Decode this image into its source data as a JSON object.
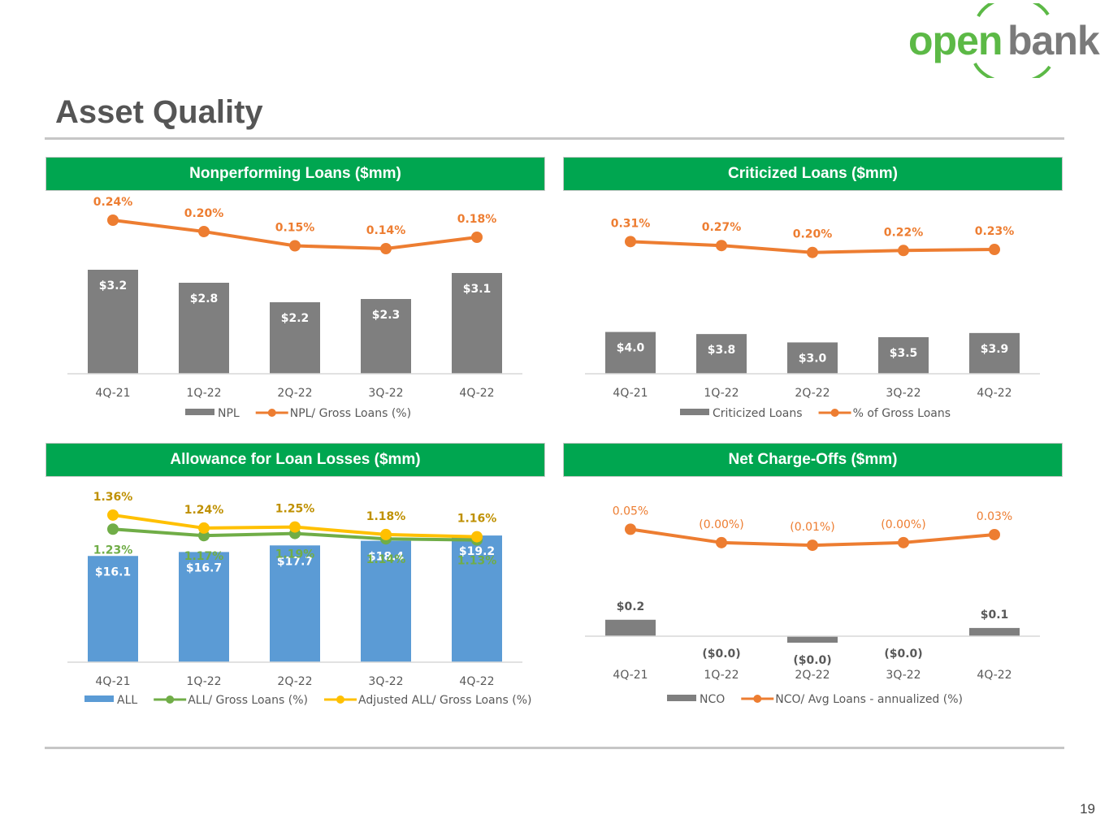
{
  "logo": {
    "part1": "open",
    "part2": "bank"
  },
  "page": {
    "title": "Asset Quality",
    "page_number": "19"
  },
  "colors": {
    "green_header": "#00a650",
    "bar_gray": "#7f7f7f",
    "bar_blue": "#5b9bd5",
    "line_orange": "#ed7d31",
    "line_green": "#70ad47",
    "line_yellow": "#ffc000"
  },
  "chart_data": [
    {
      "id": "npl",
      "type": "bar",
      "title": "Nonperforming Loans ($mm)",
      "categories": [
        "4Q-21",
        "1Q-22",
        "2Q-22",
        "3Q-22",
        "4Q-22"
      ],
      "bars": {
        "name": "NPL",
        "values": [
          3.2,
          2.8,
          2.2,
          2.3,
          3.1
        ],
        "labels": [
          "$3.2",
          "$2.8",
          "$2.2",
          "$2.3",
          "$3.1"
        ],
        "color": "#7f7f7f",
        "max": 4.5
      },
      "lines": [
        {
          "name": "NPL/ Gross Loans (%)",
          "values": [
            0.24,
            0.2,
            0.15,
            0.14,
            0.18
          ],
          "labels": [
            "0.24%",
            "0.20%",
            "0.15%",
            "0.14%",
            "0.18%"
          ],
          "color": "#ed7d31",
          "range": [
            -0.3,
            0.3
          ],
          "label_pos": "above"
        }
      ],
      "legend": [
        "NPL",
        "NPL/ Gross Loans (%)"
      ]
    },
    {
      "id": "criticized",
      "type": "bar",
      "title": "Criticized Loans ($mm)",
      "categories": [
        "4Q-21",
        "1Q-22",
        "2Q-22",
        "3Q-22",
        "4Q-22"
      ],
      "bars": {
        "name": "Criticized Loans",
        "values": [
          4.0,
          3.8,
          3.0,
          3.5,
          3.9
        ],
        "labels": [
          "$4.0",
          "$3.8",
          "$3.0",
          "$3.5",
          "$3.9"
        ],
        "color": "#7f7f7f",
        "max": 14.0
      },
      "lines": [
        {
          "name": "% of Gross Loans",
          "values": [
            0.31,
            0.27,
            0.2,
            0.22,
            0.23
          ],
          "labels": [
            "0.31%",
            "0.27%",
            "0.20%",
            "0.22%",
            "0.23%"
          ],
          "color": "#ed7d31",
          "range": [
            -1.03,
            0.7
          ],
          "label_pos": "above"
        }
      ],
      "legend": [
        "Criticized Loans",
        "% of Gross Loans"
      ]
    },
    {
      "id": "all",
      "type": "bar",
      "title": "Allowance for Loan Losses ($mm)",
      "categories": [
        "4Q-21",
        "1Q-22",
        "2Q-22",
        "3Q-22",
        "4Q-22"
      ],
      "bars": {
        "name": "ALL",
        "values": [
          16.1,
          16.7,
          17.7,
          18.4,
          19.2
        ],
        "labels": [
          "$16.1",
          "$16.7",
          "$17.7",
          "$18.4",
          "$19.2"
        ],
        "color": "#5b9bd5",
        "max": 25.0
      },
      "lines": [
        {
          "name": "ALL/ Gross Loans (%)",
          "values": [
            1.23,
            1.17,
            1.19,
            1.14,
            1.13
          ],
          "labels": [
            "1.23%",
            "1.17%",
            "1.19%",
            "1.14%",
            "1.13%"
          ],
          "color": "#70ad47",
          "range": [
            0.0,
            1.6
          ],
          "label_pos": "below"
        },
        {
          "name": "Adjusted ALL/ Gross Loans (%)",
          "values": [
            1.36,
            1.24,
            1.25,
            1.18,
            1.16
          ],
          "labels": [
            "1.36%",
            "1.24%",
            "1.25%",
            "1.18%",
            "1.16%"
          ],
          "color": "#ffc000",
          "label_color": "#bf9000",
          "range": [
            0.0,
            1.6
          ],
          "label_pos": "above"
        }
      ],
      "legend": [
        "ALL",
        "ALL/ Gross Loans (%)",
        "Adjusted ALL/ Gross Loans (%)"
      ]
    },
    {
      "id": "nco",
      "type": "bar",
      "title": "Net Charge-Offs ($mm)",
      "categories": [
        "4Q-21",
        "1Q-22",
        "2Q-22",
        "3Q-22",
        "4Q-22"
      ],
      "bars": {
        "name": "NCO",
        "values": [
          0.2,
          0.0,
          -0.01,
          0.0,
          0.1
        ],
        "labels": [
          "$0.2",
          "($0.0)",
          "($0.0)",
          "($0.0)",
          "$0.1"
        ],
        "color": "#7f7f7f",
        "max": 0.9
      },
      "lines": [
        {
          "name": "NCO/ Avg Loans - annualized (%)",
          "values": [
            0.05,
            0.0,
            -0.01,
            0.0,
            0.03
          ],
          "labels": [
            "0.05%",
            "(0.00%)",
            "(0.01%)",
            "(0.00%)",
            "0.03%"
          ],
          "color": "#ed7d31",
          "range": [
            -0.35,
            0.2
          ],
          "label_pos": "above"
        }
      ],
      "legend": [
        "NCO",
        "NCO/ Avg Loans - annualized (%)"
      ]
    }
  ]
}
